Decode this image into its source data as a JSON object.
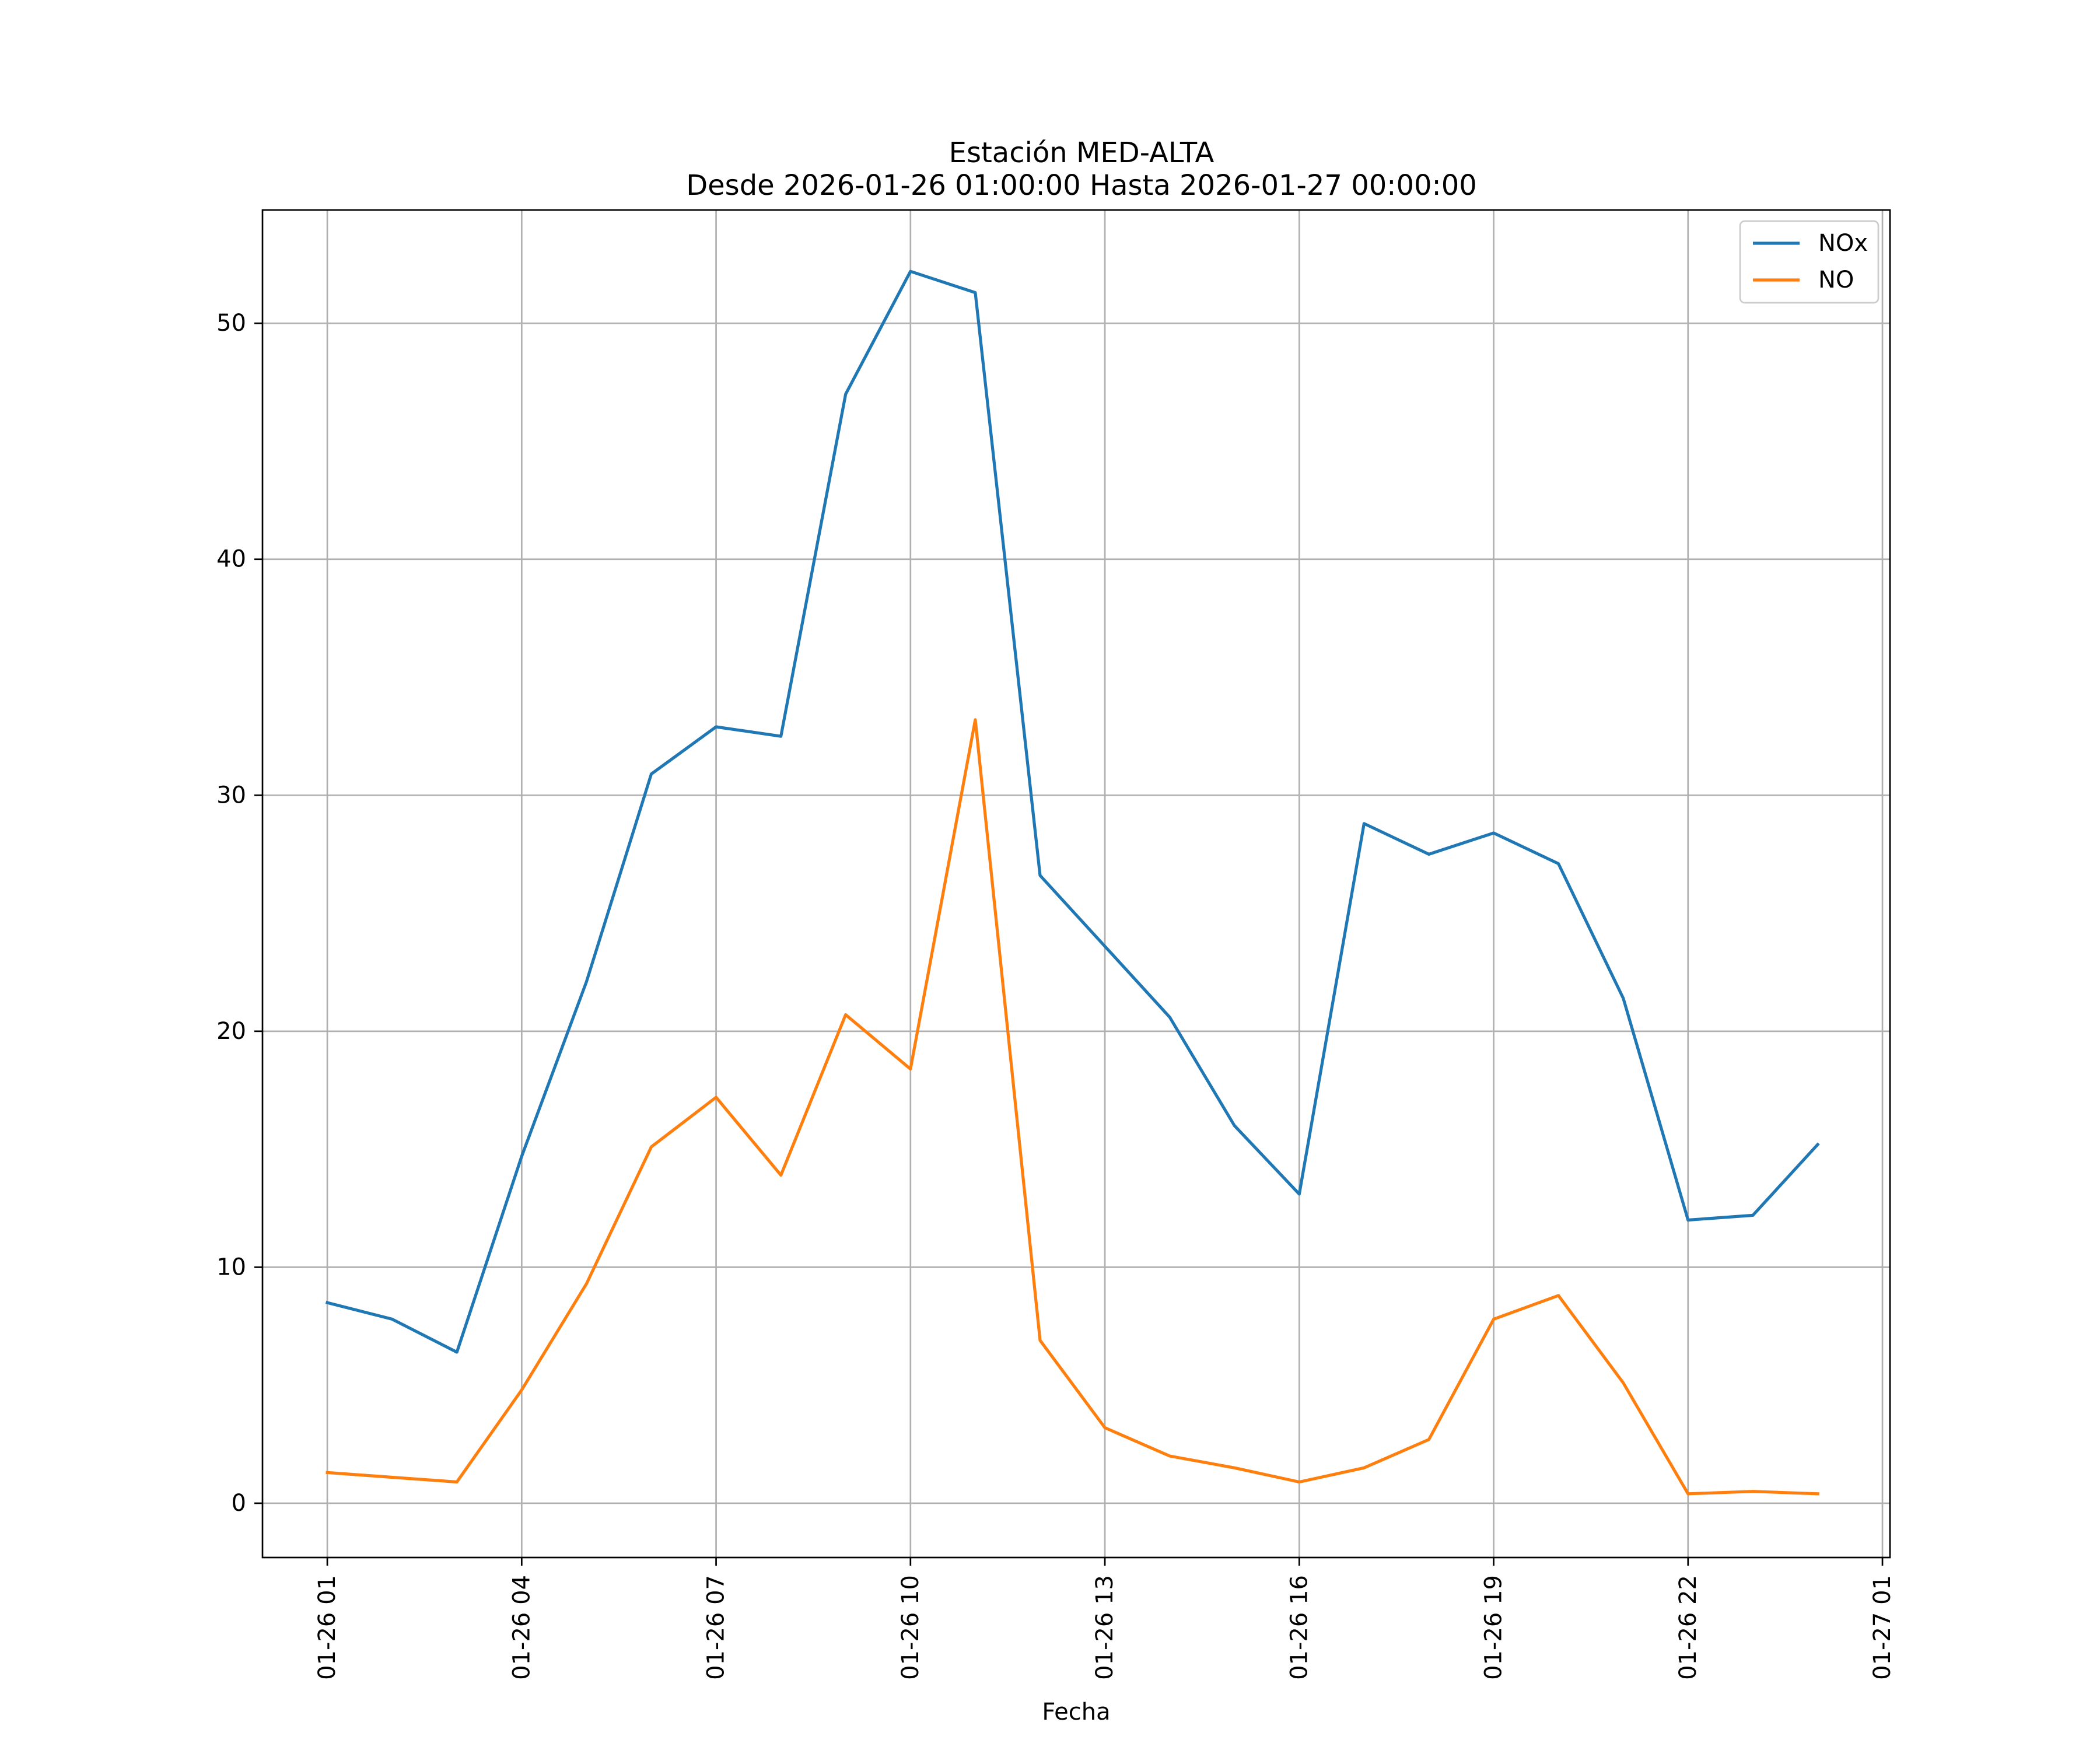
{
  "chart_data": {
    "type": "line",
    "title": "Estación MED-ALTA",
    "subtitle": "Desde 2026-01-26 01:00:00 Hasta 2026-01-27 00:00:00",
    "xlabel": "Fecha",
    "ylabel": "",
    "x": [
      "2026-01-26 01:00",
      "2026-01-26 02:00",
      "2026-01-26 03:00",
      "2026-01-26 04:00",
      "2026-01-26 05:00",
      "2026-01-26 06:00",
      "2026-01-26 07:00",
      "2026-01-26 08:00",
      "2026-01-26 09:00",
      "2026-01-26 10:00",
      "2026-01-26 11:00",
      "2026-01-26 12:00",
      "2026-01-26 13:00",
      "2026-01-26 14:00",
      "2026-01-26 15:00",
      "2026-01-26 16:00",
      "2026-01-26 17:00",
      "2026-01-26 18:00",
      "2026-01-26 19:00",
      "2026-01-26 20:00",
      "2026-01-26 21:00",
      "2026-01-26 22:00",
      "2026-01-26 23:00",
      "2026-01-27 00:00"
    ],
    "xlim": [
      "2026-01-26 00:00",
      "2026-01-27 01:07"
    ],
    "ylim": [
      -2.3,
      54.8
    ],
    "x_ticks": [
      {
        "value": "2026-01-26 01:00",
        "label": "01-26 01"
      },
      {
        "value": "2026-01-26 04:00",
        "label": "01-26 04"
      },
      {
        "value": "2026-01-26 07:00",
        "label": "01-26 07"
      },
      {
        "value": "2026-01-26 10:00",
        "label": "01-26 10"
      },
      {
        "value": "2026-01-26 13:00",
        "label": "01-26 13"
      },
      {
        "value": "2026-01-26 16:00",
        "label": "01-26 16"
      },
      {
        "value": "2026-01-26 19:00",
        "label": "01-26 19"
      },
      {
        "value": "2026-01-26 22:00",
        "label": "01-26 22"
      },
      {
        "value": "2026-01-27 01:00",
        "label": "01-27 01"
      }
    ],
    "y_ticks": [
      0,
      10,
      20,
      30,
      40,
      50
    ],
    "grid": true,
    "legend_position": "top-right",
    "series": [
      {
        "name": "NOx",
        "color": "#1f77b4",
        "values": [
          8.5,
          7.8,
          6.4,
          14.7,
          22.1,
          30.9,
          32.9,
          32.5,
          47.0,
          52.2,
          51.3,
          26.6,
          23.6,
          20.6,
          16.0,
          13.1,
          28.8,
          27.5,
          28.4,
          27.1,
          21.4,
          12.0,
          12.2,
          15.2
        ]
      },
      {
        "name": "NO",
        "color": "#ff7f0e",
        "values": [
          1.3,
          1.1,
          0.9,
          4.8,
          9.3,
          15.1,
          17.2,
          13.9,
          20.7,
          18.4,
          33.2,
          6.9,
          3.2,
          2.0,
          1.5,
          0.9,
          1.5,
          2.7,
          7.8,
          8.8,
          5.1,
          0.4,
          0.5,
          0.4
        ]
      }
    ]
  }
}
